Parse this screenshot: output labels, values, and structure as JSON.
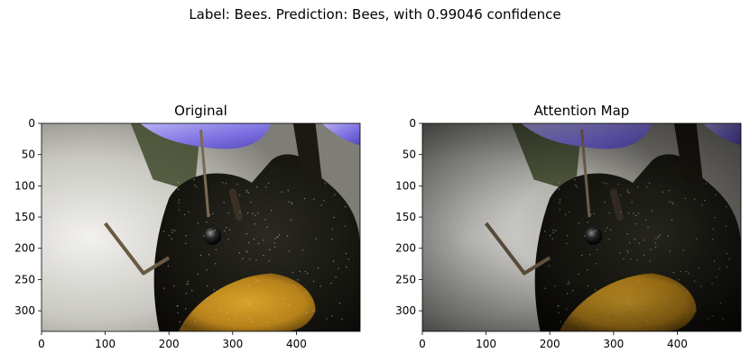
{
  "figure": {
    "suptitle": "Label: Bees. Prediction: Bees, with 0.99046 confidence"
  },
  "chart_data": [
    {
      "type": "image",
      "title": "Original",
      "image_shape": [
        333,
        500
      ],
      "xlim": [
        0,
        500
      ],
      "ylim": [
        333,
        0
      ],
      "xticks": [
        0,
        100,
        200,
        300,
        400
      ],
      "yticks": [
        0,
        50,
        100,
        150,
        200,
        250,
        300
      ],
      "darken": 0
    },
    {
      "type": "image",
      "title": "Attention Map",
      "image_shape": [
        333,
        500
      ],
      "xlim": [
        0,
        500
      ],
      "ylim": [
        333,
        0
      ],
      "xticks": [
        0,
        100,
        200,
        300,
        400
      ],
      "yticks": [
        0,
        50,
        100,
        150,
        200,
        250,
        300
      ],
      "darken": 0.35
    }
  ]
}
